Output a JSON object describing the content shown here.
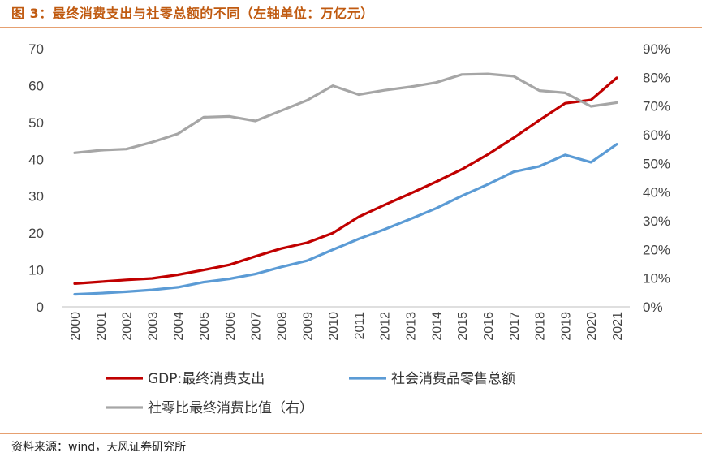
{
  "figure": {
    "title": "图 3：最终消费支出与社零总额的不同（左轴单位：万亿元）",
    "source": "资料来源：wind，天风证券研究所"
  },
  "colors": {
    "gdp": "#c00000",
    "retail": "#5b9bd5",
    "ratio": "#a6a6a6",
    "accent": "#c05a10"
  },
  "chart_data": {
    "type": "line",
    "x": [
      "2000",
      "2001",
      "2002",
      "2003",
      "2004",
      "2005",
      "2006",
      "2007",
      "2008",
      "2009",
      "2010",
      "2011",
      "2012",
      "2013",
      "2014",
      "2015",
      "2016",
      "2017",
      "2018",
      "2019",
      "2020",
      "2021"
    ],
    "y_left_ticks": [
      "0",
      "10",
      "20",
      "30",
      "40",
      "50",
      "60",
      "70"
    ],
    "y_right_ticks": [
      "0%",
      "10%",
      "20%",
      "30%",
      "40%",
      "50%",
      "60%",
      "70%",
      "80%",
      "90%"
    ],
    "ylim_left": [
      0,
      70
    ],
    "ylim_right": [
      0,
      90
    ],
    "series": [
      {
        "name": "GDP:最终消费支出",
        "axis": "left",
        "color": "#c00000",
        "values": [
          6.3,
          6.8,
          7.3,
          7.7,
          8.7,
          10.0,
          11.4,
          13.7,
          15.8,
          17.4,
          20.0,
          24.4,
          27.6,
          30.7,
          33.9,
          37.3,
          41.3,
          45.8,
          50.6,
          55.2,
          56.1,
          62.1
        ]
      },
      {
        "name": "社会消费品零售总额",
        "axis": "left",
        "color": "#5b9bd5",
        "values": [
          3.4,
          3.7,
          4.1,
          4.6,
          5.3,
          6.7,
          7.6,
          8.9,
          10.8,
          12.5,
          15.5,
          18.4,
          21.0,
          23.8,
          26.7,
          30.1,
          33.2,
          36.6,
          38.1,
          41.2,
          39.2,
          44.1
        ]
      },
      {
        "name": "社零比最终消费比值（右）",
        "axis": "right",
        "color": "#a6a6a6",
        "values": [
          53.7,
          54.6,
          55.0,
          57.4,
          60.3,
          66.1,
          66.4,
          64.8,
          68.4,
          72.0,
          77.1,
          74.0,
          75.5,
          76.7,
          78.2,
          81.0,
          81.2,
          80.4,
          75.4,
          74.6,
          69.9,
          71.2
        ]
      }
    ],
    "legend": [
      "GDP:最终消费支出",
      "社会消费品零售总额",
      "社零比最终消费比值（右）"
    ],
    "legend_position": "bottom",
    "grid": false
  }
}
